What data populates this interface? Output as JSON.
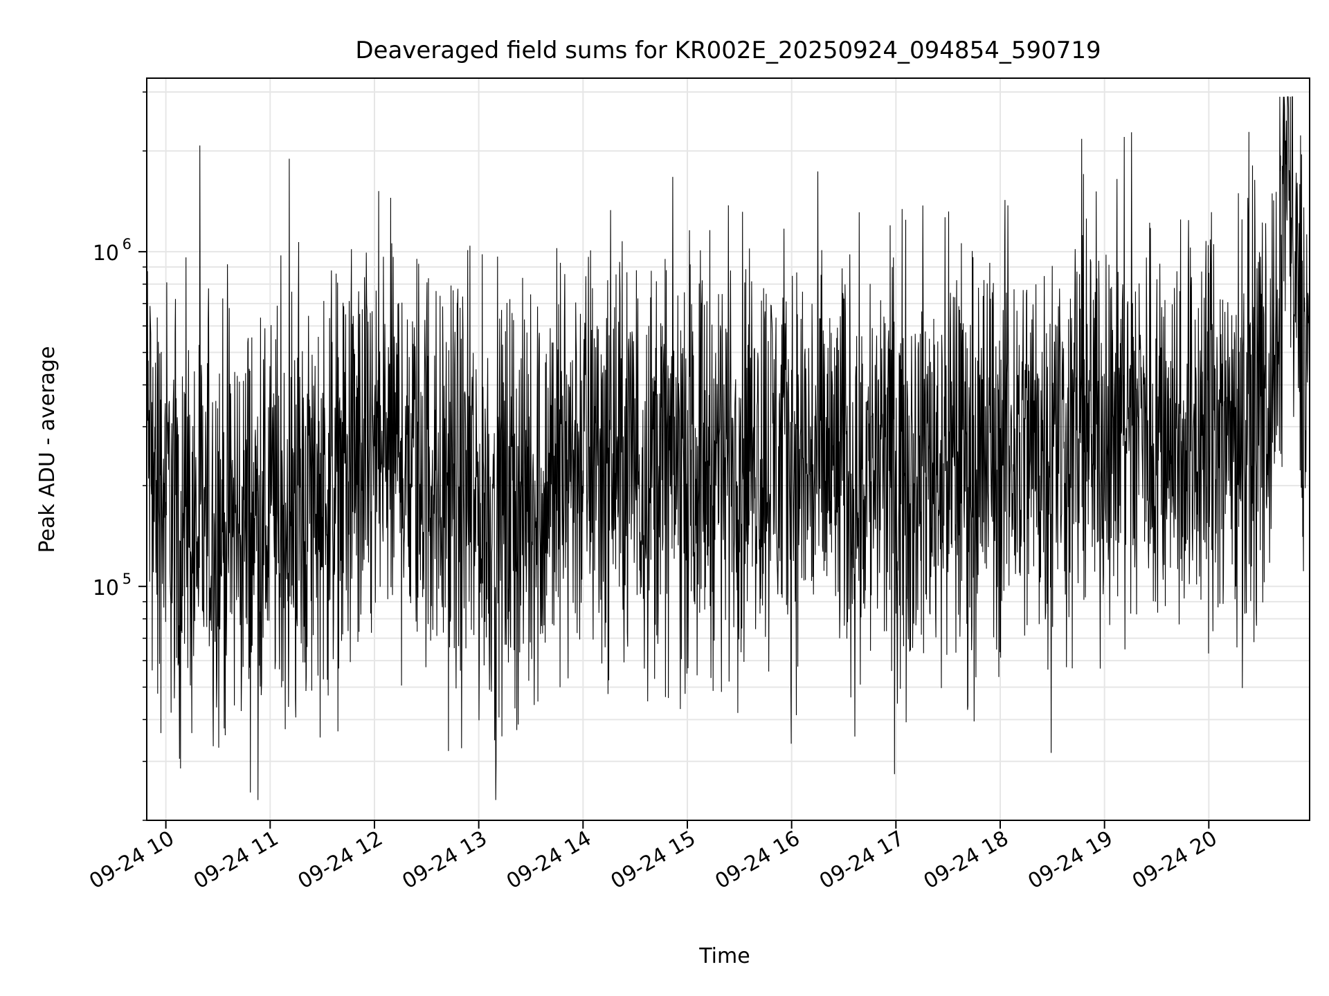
{
  "chart_data": {
    "type": "line",
    "title": "Deaveraged field sums for KR002E_20250924_094854_590719",
    "xlabel": "Time",
    "ylabel": "Peak ADU - average",
    "x_range": [
      "09-24 09:49",
      "09-24 20:58"
    ],
    "y_scale": "log",
    "ylim": [
      20000,
      3300000
    ],
    "grid": true,
    "line_color": "#000000",
    "grid_color": "#e6e6e6",
    "x_ticks": [
      {
        "label": "09-24 10",
        "value": "09-24 10:00"
      },
      {
        "label": "09-24 11",
        "value": "09-24 11:00"
      },
      {
        "label": "09-24 12",
        "value": "09-24 12:00"
      },
      {
        "label": "09-24 13",
        "value": "09-24 13:00"
      },
      {
        "label": "09-24 14",
        "value": "09-24 14:00"
      },
      {
        "label": "09-24 15",
        "value": "09-24 15:00"
      },
      {
        "label": "09-24 16",
        "value": "09-24 16:00"
      },
      {
        "label": "09-24 17",
        "value": "09-24 17:00"
      },
      {
        "label": "09-24 18",
        "value": "09-24 18:00"
      },
      {
        "label": "09-24 19",
        "value": "09-24 19:00"
      },
      {
        "label": "09-24 20",
        "value": "09-24 20:00"
      }
    ],
    "y_ticks": [
      {
        "base": "10",
        "exp": "5",
        "value": 100000
      },
      {
        "base": "10",
        "exp": "6",
        "value": 1000000
      }
    ],
    "series": [
      {
        "values_note_free": true,
        "points": [
          [
            "09-24 09:49",
            300000
          ],
          [
            "09-24 09:55",
            180000
          ],
          [
            "09-24 10:00",
            200000
          ],
          [
            "09-24 10:10",
            140000
          ],
          [
            "09-24 10:20",
            150000
          ],
          [
            "09-24 10:30",
            160000
          ],
          [
            "09-24 10:40",
            150000
          ],
          [
            "09-24 10:50",
            155000
          ],
          [
            "09-24 11:00",
            160000
          ],
          [
            "09-24 11:10",
            170000
          ],
          [
            "09-24 11:20",
            180000
          ],
          [
            "09-24 11:30",
            200000
          ],
          [
            "09-24 11:40",
            210000
          ],
          [
            "09-24 11:50",
            220000
          ],
          [
            "09-24 12:00",
            240000
          ],
          [
            "09-24 12:10",
            260000
          ],
          [
            "09-24 12:20",
            250000
          ],
          [
            "09-24 12:30",
            230000
          ],
          [
            "09-24 12:40",
            200000
          ],
          [
            "09-24 12:50",
            180000
          ],
          [
            "09-24 13:00",
            175000
          ],
          [
            "09-24 13:10",
            170000
          ],
          [
            "09-24 13:20",
            175000
          ],
          [
            "09-24 13:30",
            180000
          ],
          [
            "09-24 13:40",
            200000
          ],
          [
            "09-24 13:50",
            240000
          ],
          [
            "09-24 14:00",
            250000
          ],
          [
            "09-24 14:15",
            245000
          ],
          [
            "09-24 14:30",
            240000
          ],
          [
            "09-24 14:45",
            235000
          ],
          [
            "09-24 15:00",
            230000
          ],
          [
            "09-24 15:15",
            250000
          ],
          [
            "09-24 15:30",
            260000
          ],
          [
            "09-24 15:45",
            255000
          ],
          [
            "09-24 16:00",
            240000
          ],
          [
            "09-24 16:15",
            230000
          ],
          [
            "09-24 16:30",
            220000
          ],
          [
            "09-24 16:45",
            225000
          ],
          [
            "09-24 17:00",
            230000
          ],
          [
            "09-24 17:15",
            235000
          ],
          [
            "09-24 17:30",
            240000
          ],
          [
            "09-24 17:45",
            250000
          ],
          [
            "09-24 18:00",
            260000
          ],
          [
            "09-24 18:15",
            265000
          ],
          [
            "09-24 18:30",
            280000
          ],
          [
            "09-24 18:45",
            290000
          ],
          [
            "09-24 19:00",
            300000
          ],
          [
            "09-24 19:15",
            310000
          ],
          [
            "09-24 19:30",
            300000
          ],
          [
            "09-24 19:45",
            295000
          ],
          [
            "09-24 20:00",
            290000
          ],
          [
            "09-24 20:10",
            300000
          ],
          [
            "09-24 20:20",
            320000
          ],
          [
            "09-24 20:30",
            380000
          ],
          [
            "09-24 20:40",
            450000
          ],
          [
            "09-24 20:45",
            2800000
          ],
          [
            "09-24 20:50",
            600000
          ],
          [
            "09-24 20:58",
            500000
          ]
        ]
      }
    ]
  }
}
